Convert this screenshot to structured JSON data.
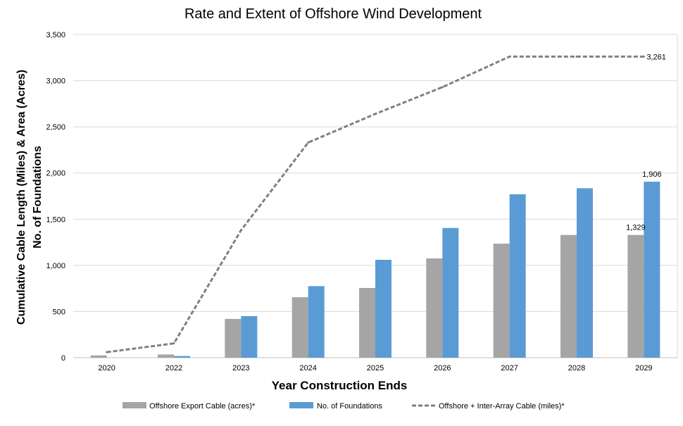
{
  "chart_data": {
    "type": "bar",
    "title": "Rate and Extent of Offshore Wind Development",
    "xlabel": "Year Construction Ends",
    "ylabel_lines": [
      "Cumulative Cable Length (Miles) & Area (Acres)",
      "No. of Foundations"
    ],
    "categories": [
      "2020",
      "2022",
      "2023",
      "2024",
      "2025",
      "2026",
      "2027",
      "2028",
      "2029"
    ],
    "ylim": [
      0,
      3500
    ],
    "yticks": [
      0,
      500,
      1000,
      1500,
      2000,
      2500,
      3000,
      3500
    ],
    "ytick_labels": [
      "0",
      "500",
      "1,000",
      "1,500",
      "2,000",
      "2,500",
      "3,000",
      "3,500"
    ],
    "grid": true,
    "legend_position": "bottom",
    "series": [
      {
        "name": "Offshore Export Cable (acres)*",
        "type": "bar",
        "color": "#a5a5a5",
        "values": [
          25,
          35,
          420,
          655,
          755,
          1075,
          1235,
          1329,
          1329
        ],
        "data_labels": {
          "8": "1,329"
        }
      },
      {
        "name": "No. of Foundations",
        "type": "bar",
        "color": "#5b9bd5",
        "values": [
          0,
          18,
          450,
          775,
          1060,
          1405,
          1770,
          1835,
          1906
        ],
        "data_labels": {
          "8": "1,906"
        }
      },
      {
        "name": "Offshore + Inter-Array Cable (miles)*",
        "type": "line",
        "style": "dashed",
        "color": "#808080",
        "values": [
          60,
          155,
          1380,
          2330,
          2640,
          2930,
          3261,
          3261,
          3261
        ],
        "data_labels": {
          "8": "3,261"
        }
      }
    ]
  }
}
